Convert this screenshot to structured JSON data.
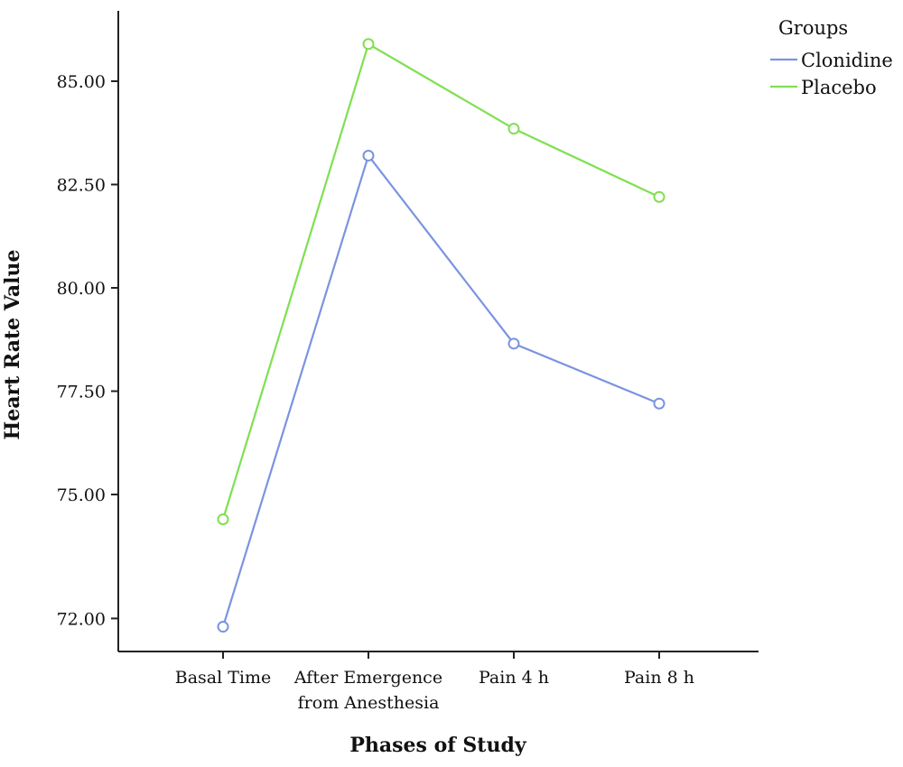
{
  "chart_data": {
    "type": "line",
    "xlabel": "Phases of Study",
    "ylabel": "Heart Rate Value",
    "categories": [
      [
        "Basal Time"
      ],
      [
        "After Emergence",
        "from Anesthesia"
      ],
      [
        "Pain 4 h"
      ],
      [
        "Pain 8 h"
      ]
    ],
    "yticks": [
      "72.00",
      "75.00",
      "77.50",
      "80.00",
      "82.50",
      "85.00"
    ],
    "ylim": [
      70.5,
      86.6
    ],
    "grid": false,
    "legend": {
      "title": "Groups",
      "position": "top-right"
    },
    "series": [
      {
        "name": "Clonidine",
        "color": "#7b93e0",
        "values": [
          71.8,
          83.2,
          78.65,
          77.2
        ]
      },
      {
        "name": "Placebo",
        "color": "#7fe050",
        "values": [
          74.4,
          85.9,
          83.85,
          82.2
        ]
      }
    ]
  }
}
